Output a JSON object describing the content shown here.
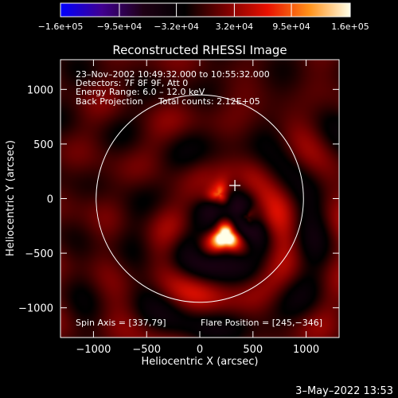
{
  "chart_data": {
    "type": "heatmap",
    "title": "Reconstructed RHESSI Image",
    "xlabel": "Heliocentric X (arcsec)",
    "ylabel": "Heliocentric Y (arcsec)",
    "xlim": [
      -1310,
      1310
    ],
    "ylim": [
      -1272,
      1272
    ],
    "xticks": [
      {
        "value": -1000,
        "label": "−1000"
      },
      {
        "value": -500,
        "label": "−500"
      },
      {
        "value": 0,
        "label": "0"
      },
      {
        "value": 500,
        "label": "500"
      },
      {
        "value": 1000,
        "label": "1000"
      }
    ],
    "yticks": [
      {
        "value": 1000,
        "label": "1000"
      },
      {
        "value": 500,
        "label": "500"
      },
      {
        "value": 0,
        "label": "0"
      },
      {
        "value": -500,
        "label": "−500"
      },
      {
        "value": -1000,
        "label": "−1000"
      }
    ],
    "annotations": [
      "23–Nov–2002 10:49:32.000 to 10:55:32.000",
      "Detectors: 7F 8F 9F, Att 0",
      "Energy Range: 6.0 – 12.0 keV",
      "Back Projection"
    ],
    "total_counts": "Total counts: 2.12E+05",
    "spin_axis": "Spin Axis = [337,79]",
    "flare_position_label": "Flare Position = [245,−346]",
    "flare_position": [
      245,
      -346
    ],
    "crosshair": [
      330,
      120
    ],
    "solar_disk": {
      "center": [
        0,
        0
      ],
      "radius": 975
    },
    "sources": [
      {
        "x": 245,
        "y": -346,
        "intensity": 160000.0
      },
      {
        "x": 180,
        "y": 40,
        "intensity": 90000.0
      },
      {
        "x": 450,
        "y": -170,
        "intensity": 70000.0
      }
    ],
    "colorbar": {
      "min": -160000.0,
      "max": 160000.0,
      "ticks": [
        {
          "value": -160000.0,
          "label": "−1.6e+05"
        },
        {
          "value": -95000.0,
          "label": "−9.5e+04"
        },
        {
          "value": -32000.0,
          "label": "−3.2e+04"
        },
        {
          "value": 32000.0,
          "label": "3.2e+04"
        },
        {
          "value": 95000.0,
          "label": "9.5e+04"
        },
        {
          "value": 160000.0,
          "label": "1.6e+05"
        }
      ],
      "colors": [
        "#0000ff",
        "#400090",
        "#1e0014",
        "#000000",
        "#7a0000",
        "#e81000",
        "#ff9018",
        "#ffffe8"
      ]
    },
    "grid": false
  },
  "footer": {
    "date": "3–May–2022 13:53"
  },
  "colors": {
    "background": "#000000",
    "foreground": "#ffffff"
  }
}
